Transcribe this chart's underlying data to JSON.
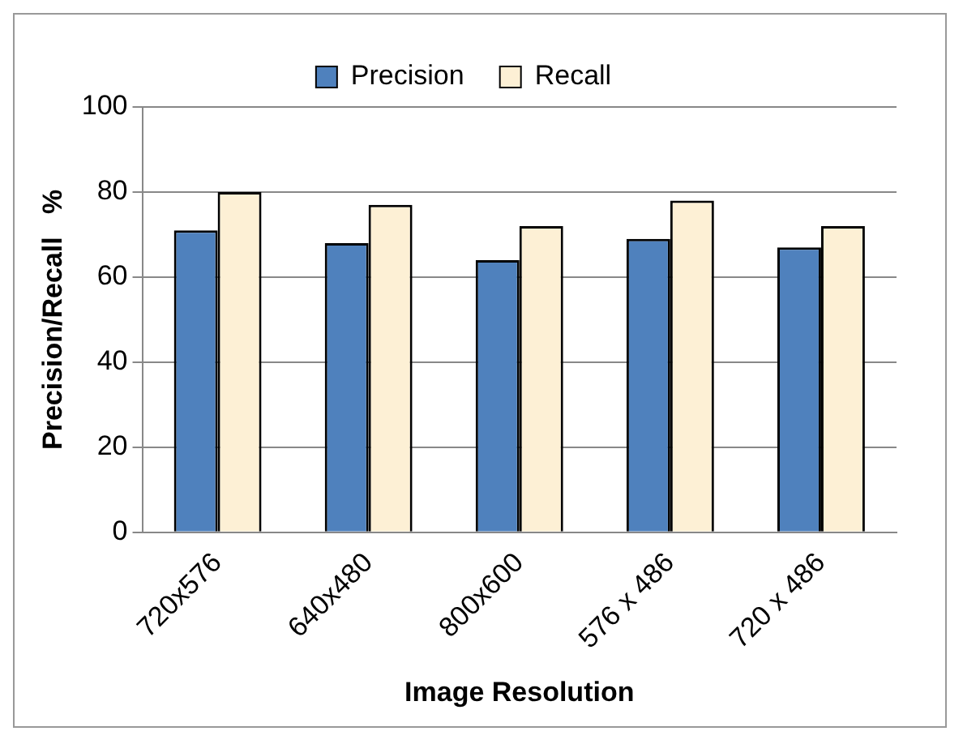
{
  "chart_data": {
    "type": "bar",
    "xlabel": "Image Resolution",
    "ylabel": "Precision/Recall   %",
    "categories": [
      "720x576",
      "640x480",
      "800x600",
      "576 x 486",
      "720 x 486"
    ],
    "series": [
      {
        "name": "Precision",
        "color": "#4f81bd",
        "values": [
          71,
          68,
          64,
          69,
          67
        ]
      },
      {
        "name": "Recall",
        "color": "#fdf0d5",
        "values": [
          80,
          77,
          72,
          78,
          72
        ]
      }
    ],
    "ylim": [
      0,
      100
    ],
    "yticks": [
      0,
      20,
      40,
      60,
      80,
      100
    ],
    "grid": "y",
    "legend": "top"
  }
}
